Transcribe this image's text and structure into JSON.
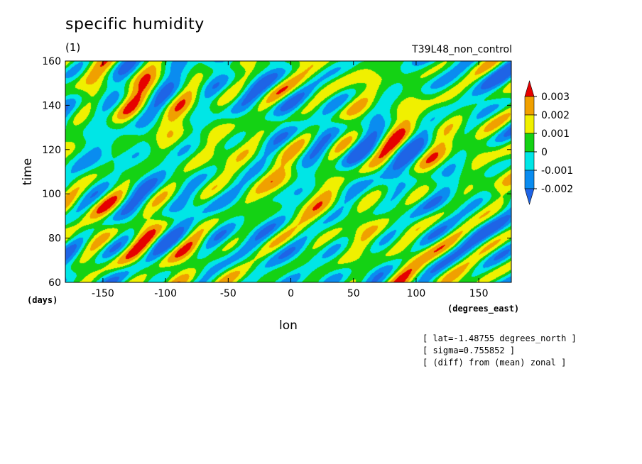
{
  "header": {
    "title": "specific humidity",
    "subtitle": "(1)",
    "experiment": "T39L48_non_control"
  },
  "notes": [
    "[ lat=-1.48755 degrees_north ]",
    "[ sigma=0.755852 ]",
    "[ (diff) from (mean) zonal ]"
  ],
  "chart_data": {
    "type": "heatmap",
    "title": "specific humidity",
    "subtitle": "(1)",
    "xlabel": "lon",
    "ylabel": "time",
    "x_units": "(degrees_east)",
    "y_units": "(days)",
    "xlim": [
      -180,
      176
    ],
    "ylim": [
      60,
      160
    ],
    "x_ticks": [
      -150,
      -100,
      -50,
      0,
      50,
      100,
      150
    ],
    "y_ticks": [
      60,
      80,
      100,
      120,
      140,
      160
    ],
    "colorbar": {
      "levels": [
        -0.002,
        -0.001,
        0,
        0.001,
        0.002,
        0.003
      ],
      "labels": [
        "-0.002",
        "-0.001",
        "0",
        "0.001",
        "0.002",
        "0.003"
      ],
      "colors": [
        "#1e64e6",
        "#0a8cf0",
        "#00e6e6",
        "#14d214",
        "#f0f000",
        "#f0a000",
        "#e60000"
      ],
      "extend": "both"
    },
    "field_description": "westward-tilted banded anomaly streaks, values mostly between -0.002 and 0.003"
  }
}
